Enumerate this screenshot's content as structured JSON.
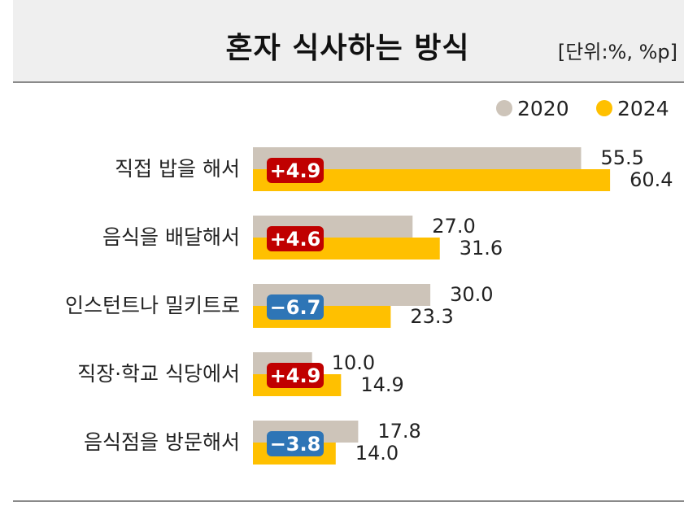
{
  "title": "혼자 식사하는 방식",
  "unit": "[단위:%, %p]",
  "colors": {
    "series_2020": "#cdc4b9",
    "series_2024": "#ffc000",
    "increase": "#c00000",
    "decrease": "#2e75b6"
  },
  "chart_data": {
    "type": "bar",
    "orientation": "horizontal",
    "categories": [
      "직접 밥을 해서",
      "음식을 배달해서",
      "인스턴트나 밀키트로",
      "직장·학교 식당에서",
      "음식점을 방문해서"
    ],
    "series": [
      {
        "name": "2020",
        "values": [
          55.5,
          27.0,
          30.0,
          10.0,
          17.8
        ],
        "labels": [
          "55.5",
          "27.0",
          "30.0",
          "10.0",
          "17.8"
        ]
      },
      {
        "name": "2024",
        "values": [
          60.4,
          31.6,
          23.3,
          14.9,
          14.0
        ],
        "labels": [
          "60.4",
          "31.6",
          "23.3",
          "14.9",
          "14.0"
        ]
      }
    ],
    "changes": [
      "+4.9",
      "+4.6",
      "−6.7",
      "+4.9",
      "−3.8"
    ],
    "legend": "top-right",
    "grid": false
  }
}
